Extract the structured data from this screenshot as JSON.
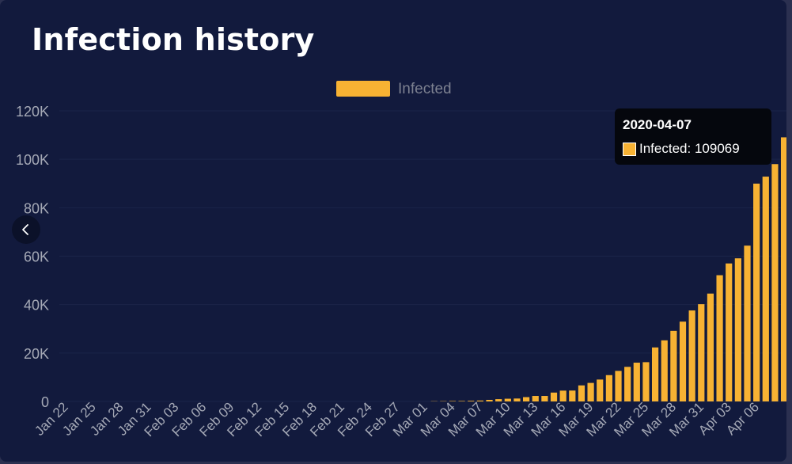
{
  "page": {
    "title": "Infection history"
  },
  "tooltip": {
    "date": "2020-04-07",
    "label": "Infected",
    "value": "109069"
  },
  "nav": {
    "prev_icon": "chevron-left-icon"
  },
  "colors": {
    "background": "#121a3d",
    "bar": "#f7b233",
    "axis_text": "#a5a9b6",
    "legend_text": "#7d8190",
    "grid": "#1b2449"
  },
  "chart_data": {
    "type": "bar",
    "title": "Infection history",
    "xlabel": "",
    "ylabel": "",
    "legend": {
      "position": "top-center",
      "entries": [
        "Infected"
      ]
    },
    "ylim": [
      0,
      120000
    ],
    "yticks": [
      0,
      20000,
      40000,
      60000,
      80000,
      100000,
      120000
    ],
    "ytick_labels": [
      "0",
      "20K",
      "40K",
      "60K",
      "80K",
      "100K",
      "120K"
    ],
    "grid": true,
    "x_start": "2020-01-22",
    "xtick_labels": [
      "Jan 22",
      "Jan 25",
      "Jan 28",
      "Jan 31",
      "Feb 03",
      "Feb 06",
      "Feb 09",
      "Feb 12",
      "Feb 15",
      "Feb 18",
      "Feb 21",
      "Feb 24",
      "Feb 27",
      "Mar 01",
      "Mar 04",
      "Mar 07",
      "Mar 10",
      "Mar 13",
      "Mar 16",
      "Mar 19",
      "Mar 22",
      "Mar 25",
      "Mar 28",
      "Mar 31",
      "Apr 03",
      "Apr 06"
    ],
    "series": [
      {
        "name": "Infected",
        "color": "#f7b233",
        "values": [
          0,
          0,
          0,
          0,
          0,
          0,
          0,
          0,
          0,
          0,
          0,
          0,
          0,
          0,
          0,
          0,
          0,
          0,
          0,
          0,
          0,
          0,
          0,
          0,
          0,
          0,
          0,
          0,
          0,
          0,
          0,
          0,
          0,
          0,
          0,
          0,
          0,
          0,
          0,
          0,
          100,
          130,
          191,
          204,
          285,
          377,
          653,
          949,
          1126,
          1209,
          1784,
          2281,
          2281,
          3661,
          4469,
          4499,
          6633,
          7652,
          9043,
          10871,
          12612,
          14282,
          16018,
          16220,
          22304,
          25233,
          29155,
          32964,
          37575,
          40174,
          44550,
          52128,
          56989,
          59105,
          64338,
          89953,
          92839,
          98010,
          109069
        ]
      }
    ]
  }
}
